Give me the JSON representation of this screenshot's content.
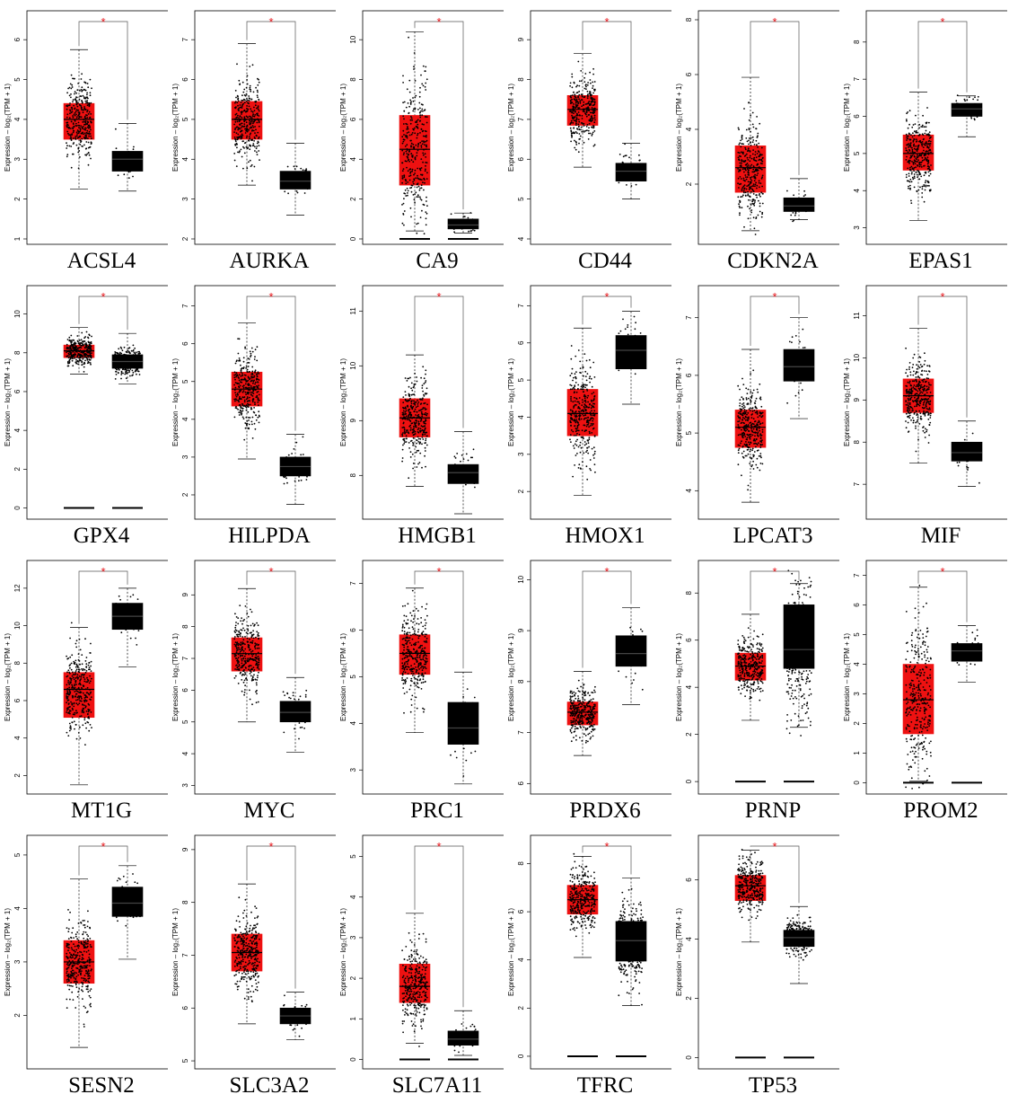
{
  "colors": {
    "tumor": "#ee1111",
    "normal": "#000000",
    "significance": "#e8141a",
    "frame": "#000000"
  },
  "y_axis_label": "Expression – log₂(TPM + 1)",
  "significance_mark": "*",
  "chart_data": [
    {
      "type": "box",
      "gene": "ACSL4",
      "ylim": [
        1,
        6.5
      ],
      "yticks": [
        "1",
        "2",
        "3",
        "4",
        "5",
        "6"
      ],
      "series": [
        {
          "group": "tumor",
          "color": "#ee1111",
          "whisker_low": 2.25,
          "q1": 3.5,
          "median": 4.0,
          "q3": 4.4,
          "whisker_high": 5.75,
          "n": 320
        },
        {
          "group": "normal",
          "color": "#000000",
          "whisker_low": 2.2,
          "q1": 2.7,
          "median": 3.0,
          "q3": 3.2,
          "whisker_high": 3.9,
          "n": 40
        }
      ]
    },
    {
      "type": "box",
      "gene": "AURKA",
      "ylim": [
        2,
        7.5
      ],
      "yticks": [
        "2",
        "3",
        "4",
        "5",
        "6",
        "7"
      ],
      "series": [
        {
          "group": "tumor",
          "color": "#ee1111",
          "whisker_low": 3.35,
          "q1": 4.5,
          "median": 5.0,
          "q3": 5.45,
          "whisker_high": 6.9,
          "n": 320
        },
        {
          "group": "normal",
          "color": "#000000",
          "whisker_low": 2.6,
          "q1": 3.25,
          "median": 3.45,
          "q3": 3.7,
          "whisker_high": 4.4,
          "n": 40
        }
      ]
    },
    {
      "type": "box",
      "gene": "CA9",
      "ylim": [
        0,
        11
      ],
      "yticks": [
        "0",
        "2",
        "4",
        "6",
        "8",
        "10"
      ],
      "series": [
        {
          "group": "tumor",
          "color": "#ee1111",
          "whisker_low": 0.4,
          "q1": 2.7,
          "median": 4.5,
          "q3": 6.2,
          "whisker_high": 10.4,
          "n": 320,
          "zero_line": true
        },
        {
          "group": "normal",
          "color": "#000000",
          "whisker_low": 0.3,
          "q1": 0.5,
          "median": 0.7,
          "q3": 1.0,
          "whisker_high": 1.3,
          "n": 40,
          "zero_line": true
        }
      ]
    },
    {
      "type": "box",
      "gene": "CD44",
      "ylim": [
        4,
        9.5
      ],
      "yticks": [
        "4",
        "5",
        "6",
        "7",
        "8",
        "9"
      ],
      "series": [
        {
          "group": "tumor",
          "color": "#ee1111",
          "whisker_low": 5.8,
          "q1": 6.85,
          "median": 7.25,
          "q3": 7.6,
          "whisker_high": 8.65,
          "n": 320
        },
        {
          "group": "normal",
          "color": "#000000",
          "whisker_low": 5.0,
          "q1": 5.45,
          "median": 5.7,
          "q3": 5.9,
          "whisker_high": 6.4,
          "n": 40
        }
      ]
    },
    {
      "type": "box",
      "gene": "CDKN2A",
      "ylim": [
        0,
        8
      ],
      "yticks": [
        "2",
        "4",
        "6",
        "8"
      ],
      "series": [
        {
          "group": "tumor",
          "color": "#ee1111",
          "whisker_low": 0.3,
          "q1": 1.7,
          "median": 2.6,
          "q3": 3.4,
          "whisker_high": 5.9,
          "n": 320
        },
        {
          "group": "normal",
          "color": "#000000",
          "whisker_low": 0.7,
          "q1": 1.0,
          "median": 1.2,
          "q3": 1.5,
          "whisker_high": 2.2,
          "n": 40
        }
      ]
    },
    {
      "type": "box",
      "gene": "EPAS1",
      "ylim": [
        2.7,
        8.6
      ],
      "yticks": [
        "3",
        "4",
        "5",
        "6",
        "7",
        "8"
      ],
      "series": [
        {
          "group": "tumor",
          "color": "#ee1111",
          "whisker_low": 3.2,
          "q1": 4.55,
          "median": 5.0,
          "q3": 5.5,
          "whisker_high": 6.65,
          "n": 320
        },
        {
          "group": "normal",
          "color": "#000000",
          "whisker_low": 5.45,
          "q1": 6.0,
          "median": 6.2,
          "q3": 6.35,
          "whisker_high": 6.55,
          "n": 40
        }
      ]
    },
    {
      "type": "box",
      "gene": "GPX4",
      "ylim": [
        -0.3,
        11
      ],
      "yticks": [
        "0",
        "2",
        "4",
        "6",
        "8",
        "10"
      ],
      "series": [
        {
          "group": "tumor",
          "color": "#ee1111",
          "whisker_low": 6.9,
          "q1": 7.75,
          "median": 8.1,
          "q3": 8.4,
          "whisker_high": 9.3,
          "n": 320,
          "zero_line": true
        },
        {
          "group": "normal",
          "color": "#000000",
          "whisker_low": 6.4,
          "q1": 7.2,
          "median": 7.55,
          "q3": 7.9,
          "whisker_high": 9.0,
          "n": 320,
          "zero_line": true
        }
      ]
    },
    {
      "type": "box",
      "gene": "HILPDA",
      "ylim": [
        1.5,
        7.3
      ],
      "yticks": [
        "2",
        "3",
        "4",
        "5",
        "6",
        "7"
      ],
      "series": [
        {
          "group": "tumor",
          "color": "#ee1111",
          "whisker_low": 2.95,
          "q1": 4.35,
          "median": 4.8,
          "q3": 5.25,
          "whisker_high": 6.55,
          "n": 320
        },
        {
          "group": "normal",
          "color": "#000000",
          "whisker_low": 1.75,
          "q1": 2.5,
          "median": 2.75,
          "q3": 3.0,
          "whisker_high": 3.6,
          "n": 40
        }
      ]
    },
    {
      "type": "box",
      "gene": "HMGB1",
      "ylim": [
        7.3,
        11.3
      ],
      "yticks": [
        "8",
        "9",
        "10",
        "11"
      ],
      "series": [
        {
          "group": "tumor",
          "color": "#ee1111",
          "whisker_low": 7.8,
          "q1": 8.7,
          "median": 9.05,
          "q3": 9.4,
          "whisker_high": 10.2,
          "n": 320
        },
        {
          "group": "normal",
          "color": "#000000",
          "whisker_low": 7.3,
          "q1": 7.85,
          "median": 8.05,
          "q3": 8.2,
          "whisker_high": 8.8,
          "n": 40
        }
      ]
    },
    {
      "type": "box",
      "gene": "HMOX1",
      "ylim": [
        1.4,
        7.3
      ],
      "yticks": [
        "2",
        "3",
        "4",
        "5",
        "6",
        "7"
      ],
      "series": [
        {
          "group": "tumor",
          "color": "#ee1111",
          "whisker_low": 1.9,
          "q1": 3.5,
          "median": 4.1,
          "q3": 4.75,
          "whisker_high": 6.4,
          "n": 320
        },
        {
          "group": "normal",
          "color": "#000000",
          "whisker_low": 4.35,
          "q1": 5.3,
          "median": 5.8,
          "q3": 6.2,
          "whisker_high": 6.85,
          "n": 40
        }
      ]
    },
    {
      "type": "box",
      "gene": "LPCAT3",
      "ylim": [
        3.6,
        7.4
      ],
      "yticks": [
        "4",
        "5",
        "6",
        "7"
      ],
      "series": [
        {
          "group": "tumor",
          "color": "#ee1111",
          "whisker_low": 3.8,
          "q1": 4.75,
          "median": 5.1,
          "q3": 5.4,
          "whisker_high": 6.45,
          "n": 320
        },
        {
          "group": "normal",
          "color": "#000000",
          "whisker_low": 5.25,
          "q1": 5.9,
          "median": 6.15,
          "q3": 6.45,
          "whisker_high": 7.0,
          "n": 40
        }
      ]
    },
    {
      "type": "box",
      "gene": "MIF",
      "ylim": [
        6.3,
        11.5
      ],
      "yticks": [
        "7",
        "8",
        "9",
        "10",
        "11"
      ],
      "series": [
        {
          "group": "tumor",
          "color": "#ee1111",
          "whisker_low": 7.5,
          "q1": 8.7,
          "median": 9.1,
          "q3": 9.5,
          "whisker_high": 10.7,
          "n": 320
        },
        {
          "group": "normal",
          "color": "#000000",
          "whisker_low": 6.95,
          "q1": 7.55,
          "median": 7.75,
          "q3": 8.0,
          "whisker_high": 8.5,
          "n": 40
        }
      ]
    },
    {
      "type": "box",
      "gene": "MT1G",
      "ylim": [
        1.3,
        13
      ],
      "yticks": [
        "2",
        "4",
        "6",
        "8",
        "10",
        "12"
      ],
      "series": [
        {
          "group": "tumor",
          "color": "#ee1111",
          "whisker_low": 1.5,
          "q1": 5.1,
          "median": 6.6,
          "q3": 7.5,
          "whisker_high": 9.9,
          "n": 320
        },
        {
          "group": "normal",
          "color": "#000000",
          "whisker_low": 7.8,
          "q1": 9.8,
          "median": 10.5,
          "q3": 11.2,
          "whisker_high": 12.0,
          "n": 40
        }
      ]
    },
    {
      "type": "box",
      "gene": "MYC",
      "ylim": [
        2.9,
        9.8
      ],
      "yticks": [
        "3",
        "4",
        "5",
        "6",
        "7",
        "8",
        "9"
      ],
      "series": [
        {
          "group": "tumor",
          "color": "#ee1111",
          "whisker_low": 5.0,
          "q1": 6.6,
          "median": 7.15,
          "q3": 7.65,
          "whisker_high": 9.2,
          "n": 320
        },
        {
          "group": "normal",
          "color": "#000000",
          "whisker_low": 4.05,
          "q1": 5.0,
          "median": 5.3,
          "q3": 5.65,
          "whisker_high": 6.4,
          "n": 40
        }
      ]
    },
    {
      "type": "box",
      "gene": "PRC1",
      "ylim": [
        2.6,
        7.3
      ],
      "yticks": [
        "3",
        "4",
        "5",
        "6",
        "7"
      ],
      "series": [
        {
          "group": "tumor",
          "color": "#ee1111",
          "whisker_low": 3.8,
          "q1": 5.05,
          "median": 5.5,
          "q3": 5.9,
          "whisker_high": 6.9,
          "n": 320
        },
        {
          "group": "normal",
          "color": "#000000",
          "whisker_low": 2.7,
          "q1": 3.55,
          "median": 3.9,
          "q3": 4.45,
          "whisker_high": 5.1,
          "n": 40
        }
      ]
    },
    {
      "type": "box",
      "gene": "PRDX6",
      "ylim": [
        5.9,
        10.2
      ],
      "yticks": [
        "6",
        "7",
        "8",
        "9",
        "10"
      ],
      "series": [
        {
          "group": "tumor",
          "color": "#ee1111",
          "whisker_low": 6.55,
          "q1": 7.15,
          "median": 7.4,
          "q3": 7.6,
          "whisker_high": 8.2,
          "n": 320
        },
        {
          "group": "normal",
          "color": "#000000",
          "whisker_low": 7.55,
          "q1": 8.3,
          "median": 8.55,
          "q3": 8.9,
          "whisker_high": 9.45,
          "n": 40
        }
      ]
    },
    {
      "type": "box",
      "gene": "PRNP",
      "ylim": [
        -0.3,
        9
      ],
      "yticks": [
        "0",
        "2",
        "4",
        "6",
        "8"
      ],
      "series": [
        {
          "group": "tumor",
          "color": "#ee1111",
          "whisker_low": 2.6,
          "q1": 4.3,
          "median": 4.9,
          "q3": 5.45,
          "whisker_high": 7.1,
          "n": 320,
          "zero_line": true
        },
        {
          "group": "normal",
          "color": "#000000",
          "whisker_low": 2.3,
          "q1": 4.8,
          "median": 5.6,
          "q3": 7.5,
          "whisker_high": 8.4,
          "n": 320,
          "zero_line": true
        }
      ]
    },
    {
      "type": "box",
      "gene": "PROM2",
      "ylim": [
        -0.2,
        7.2
      ],
      "yticks": [
        "0",
        "1",
        "2",
        "3",
        "4",
        "5",
        "6",
        "7"
      ],
      "series": [
        {
          "group": "tumor",
          "color": "#ee1111",
          "whisker_low": 0.05,
          "q1": 1.65,
          "median": 2.8,
          "q3": 4.0,
          "whisker_high": 6.6,
          "n": 320,
          "zero_line": true
        },
        {
          "group": "normal",
          "color": "#000000",
          "whisker_low": 3.4,
          "q1": 4.1,
          "median": 4.45,
          "q3": 4.7,
          "whisker_high": 5.3,
          "n": 40,
          "zero_line": true
        }
      ]
    },
    {
      "type": "box",
      "gene": "SESN2",
      "ylim": [
        1.1,
        5.2
      ],
      "yticks": [
        "2",
        "3",
        "4",
        "5"
      ],
      "series": [
        {
          "group": "tumor",
          "color": "#ee1111",
          "whisker_low": 1.4,
          "q1": 2.6,
          "median": 3.0,
          "q3": 3.4,
          "whisker_high": 4.55,
          "n": 320
        },
        {
          "group": "normal",
          "color": "#000000",
          "whisker_low": 3.05,
          "q1": 3.85,
          "median": 4.1,
          "q3": 4.4,
          "whisker_high": 4.8,
          "n": 40
        }
      ]
    },
    {
      "type": "box",
      "gene": "SLC3A2",
      "ylim": [
        4.95,
        9.1
      ],
      "yticks": [
        "5",
        "6",
        "7",
        "8",
        "9"
      ],
      "series": [
        {
          "group": "tumor",
          "color": "#ee1111",
          "whisker_low": 5.7,
          "q1": 6.7,
          "median": 7.05,
          "q3": 7.4,
          "whisker_high": 8.35,
          "n": 320
        },
        {
          "group": "normal",
          "color": "#000000",
          "whisker_low": 5.4,
          "q1": 5.7,
          "median": 5.85,
          "q3": 6.0,
          "whisker_high": 6.3,
          "n": 40
        }
      ]
    },
    {
      "type": "box",
      "gene": "SLC7A11",
      "ylim": [
        -0.1,
        5.3
      ],
      "yticks": [
        "0",
        "1",
        "2",
        "3",
        "4",
        "5"
      ],
      "series": [
        {
          "group": "tumor",
          "color": "#ee1111",
          "whisker_low": 0.4,
          "q1": 1.4,
          "median": 1.8,
          "q3": 2.35,
          "whisker_high": 3.6,
          "n": 320,
          "zero_line": true
        },
        {
          "group": "normal",
          "color": "#000000",
          "whisker_low": 0.1,
          "q1": 0.35,
          "median": 0.5,
          "q3": 0.7,
          "whisker_high": 1.2,
          "n": 40,
          "zero_line": true
        }
      ]
    },
    {
      "type": "box",
      "gene": "TFRC",
      "ylim": [
        -0.3,
        8.8
      ],
      "yticks": [
        "0",
        "2",
        "4",
        "6",
        "8"
      ],
      "series": [
        {
          "group": "tumor",
          "color": "#ee1111",
          "whisker_low": 4.1,
          "q1": 5.9,
          "median": 6.5,
          "q3": 7.1,
          "whisker_high": 8.3,
          "n": 320,
          "zero_line": true
        },
        {
          "group": "normal",
          "color": "#000000",
          "whisker_low": 2.1,
          "q1": 3.95,
          "median": 4.8,
          "q3": 5.6,
          "whisker_high": 7.4,
          "n": 320,
          "zero_line": true
        }
      ]
    },
    {
      "type": "box",
      "gene": "TP53",
      "ylim": [
        -0.2,
        7.2
      ],
      "yticks": [
        "0",
        "2",
        "4",
        "6"
      ],
      "series": [
        {
          "group": "tumor",
          "color": "#ee1111",
          "whisker_low": 3.9,
          "q1": 5.3,
          "median": 5.8,
          "q3": 6.15,
          "whisker_high": 7.0,
          "n": 320,
          "zero_line": true
        },
        {
          "group": "normal",
          "color": "#000000",
          "whisker_low": 2.5,
          "q1": 3.75,
          "median": 4.05,
          "q3": 4.3,
          "whisker_high": 5.1,
          "n": 320,
          "zero_line": true
        }
      ]
    }
  ]
}
